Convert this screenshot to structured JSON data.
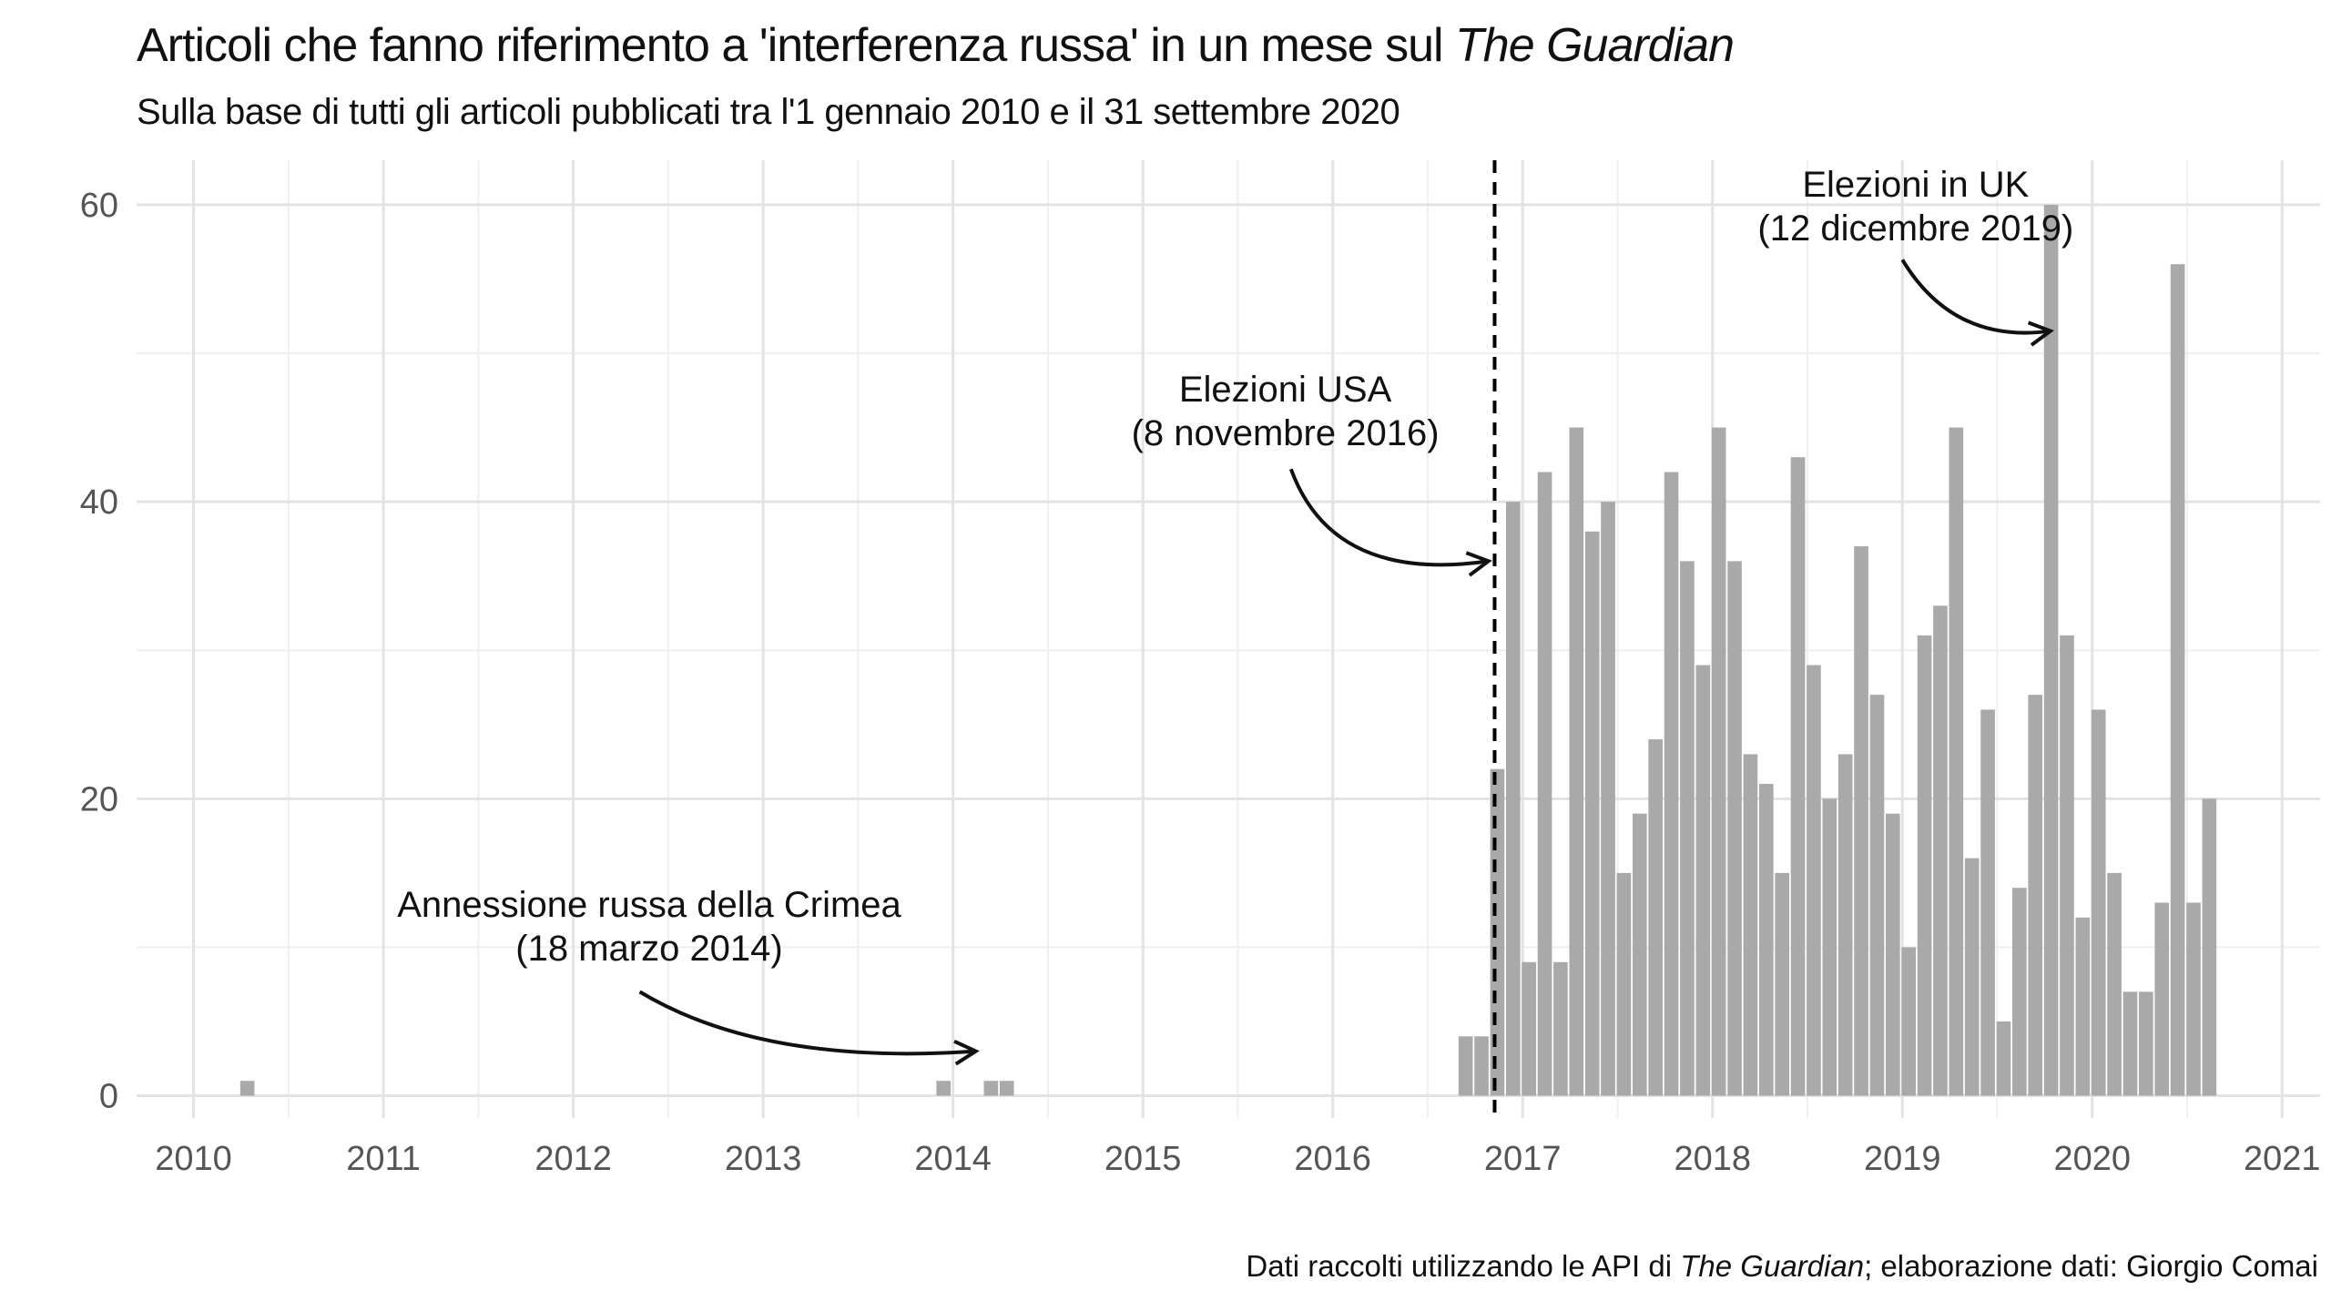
{
  "title_main": "Articoli che fanno riferimento a 'interferenza russa' in un mese sul",
  "title_italic": "The Guardian",
  "subtitle": "Sulla base di tutti gli articoli pubblicati tra l'1 gennaio 2010 e il 31 settembre 2020",
  "caption": {
    "prefix": "Dati raccolti utilizzando le API di",
    "italic": "The Guardian",
    "suffix": "; elaborazione dati: Giorgio Comai"
  },
  "colors": {
    "bar": "#a9a9a9",
    "grid_major": "#e3e3e3",
    "grid_minor": "#efefef",
    "text": "#111111",
    "ticks": "#555555"
  },
  "chart_data": {
    "type": "bar",
    "xlabel": "",
    "ylabel": "",
    "xlim": [
      2009.7,
      2021.2
    ],
    "ylim": [
      -1.5,
      63
    ],
    "x_ticks": [
      2010,
      2011,
      2012,
      2013,
      2014,
      2015,
      2016,
      2017,
      2018,
      2019,
      2020,
      2021
    ],
    "y_ticks": [
      0,
      20,
      40,
      60
    ],
    "grid": true,
    "months": [
      {
        "date": "2010-04",
        "value": 1
      },
      {
        "date": "2013-12",
        "value": 1
      },
      {
        "date": "2014-03",
        "value": 1
      },
      {
        "date": "2014-04",
        "value": 1
      },
      {
        "date": "2016-09",
        "value": 4
      },
      {
        "date": "2016-10",
        "value": 4
      },
      {
        "date": "2016-11",
        "value": 22
      },
      {
        "date": "2016-12",
        "value": 40
      },
      {
        "date": "2017-01",
        "value": 9
      },
      {
        "date": "2017-02",
        "value": 42
      },
      {
        "date": "2017-03",
        "value": 9
      },
      {
        "date": "2017-04",
        "value": 45
      },
      {
        "date": "2017-05",
        "value": 38
      },
      {
        "date": "2017-06",
        "value": 40
      },
      {
        "date": "2017-07",
        "value": 15
      },
      {
        "date": "2017-08",
        "value": 19
      },
      {
        "date": "2017-09",
        "value": 24
      },
      {
        "date": "2017-10",
        "value": 42
      },
      {
        "date": "2017-11",
        "value": 36
      },
      {
        "date": "2017-12",
        "value": 29
      },
      {
        "date": "2018-01",
        "value": 45
      },
      {
        "date": "2018-02",
        "value": 36
      },
      {
        "date": "2018-03",
        "value": 23
      },
      {
        "date": "2018-04",
        "value": 21
      },
      {
        "date": "2018-05",
        "value": 15
      },
      {
        "date": "2018-06",
        "value": 43
      },
      {
        "date": "2018-07",
        "value": 29
      },
      {
        "date": "2018-08",
        "value": 20
      },
      {
        "date": "2018-09",
        "value": 23
      },
      {
        "date": "2018-10",
        "value": 37
      },
      {
        "date": "2018-11",
        "value": 27
      },
      {
        "date": "2018-12",
        "value": 19
      },
      {
        "date": "2019-01",
        "value": 10
      },
      {
        "date": "2019-02",
        "value": 31
      },
      {
        "date": "2019-03",
        "value": 33
      },
      {
        "date": "2019-04",
        "value": 45
      },
      {
        "date": "2019-05",
        "value": 16
      },
      {
        "date": "2019-06",
        "value": 26
      },
      {
        "date": "2019-07",
        "value": 5
      },
      {
        "date": "2019-08",
        "value": 14
      },
      {
        "date": "2019-09",
        "value": 27
      },
      {
        "date": "2019-10",
        "value": 60
      },
      {
        "date": "2019-11",
        "value": 31
      },
      {
        "date": "2019-12",
        "value": 12
      },
      {
        "date": "2020-01",
        "value": 26
      },
      {
        "date": "2020-02",
        "value": 15
      },
      {
        "date": "2020-03",
        "value": 7
      },
      {
        "date": "2020-04",
        "value": 7
      },
      {
        "date": "2020-05",
        "value": 13
      },
      {
        "date": "2020-06",
        "value": 56
      },
      {
        "date": "2020-07",
        "value": 13
      },
      {
        "date": "2020-08",
        "value": 20
      }
    ],
    "reference_line": {
      "date": "2016-11-08",
      "style": "dashed"
    },
    "annotations": [
      {
        "lines": [
          "Annessione russa della Crimea",
          "(18 marzo 2014)"
        ],
        "arrow_to": {
          "x": 2014.12,
          "y": 3
        }
      },
      {
        "lines": [
          "Elezioni USA",
          "(8 novembre 2016)"
        ],
        "arrow_to": {
          "x": 2016.82,
          "y": 36
        }
      },
      {
        "lines": [
          "Elezioni in UK",
          "(12 dicembre 2019)"
        ],
        "arrow_to": {
          "x": 2019.78,
          "y": 51.5
        }
      }
    ]
  }
}
